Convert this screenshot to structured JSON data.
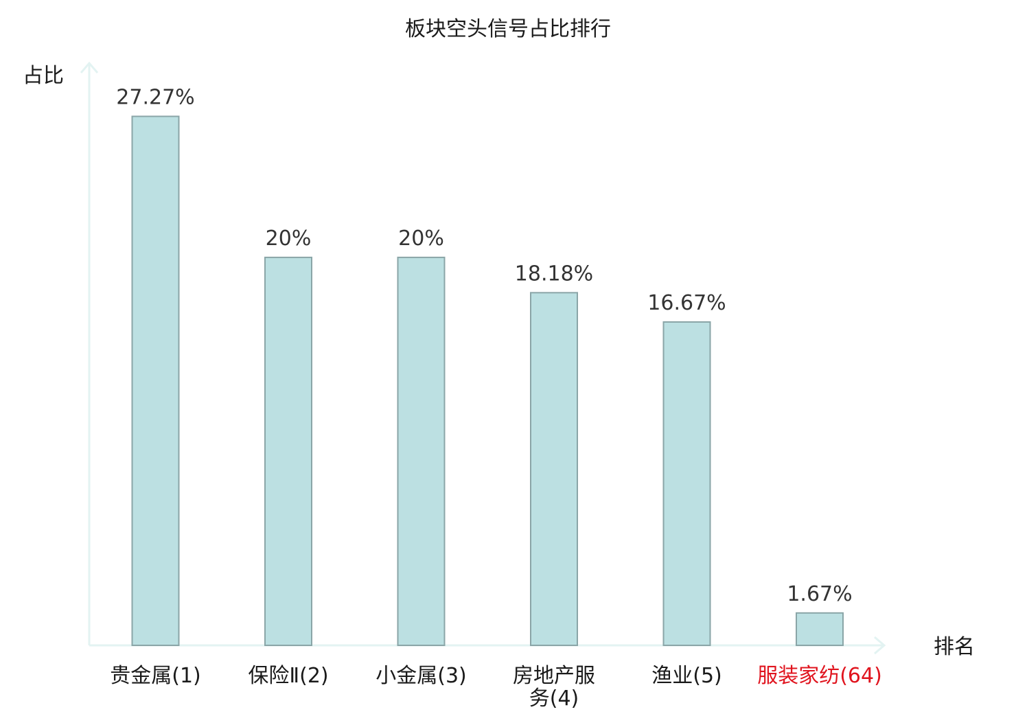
{
  "chart_data": {
    "type": "bar",
    "title": "板块空头信号占比排行",
    "ylabel": "占比",
    "xlabel": "排名",
    "ylim": [
      0,
      30
    ],
    "grid": false,
    "legend": "none",
    "bar_color": "#bce0e2",
    "bar_edge_color": "#8aa5a7",
    "axis_color": "#e3f3f2",
    "highlight_color": "#e0141e",
    "categories": [
      {
        "name": "贵金属",
        "rank": "(1)",
        "highlight": false
      },
      {
        "name": "保险Ⅱ",
        "rank": "(2)",
        "highlight": false
      },
      {
        "name": "小金属",
        "rank": "(3)",
        "highlight": false
      },
      {
        "name": "房地产服务",
        "rank": "(4)",
        "highlight": false,
        "wrap": [
          "房地产服",
          "务(4)"
        ]
      },
      {
        "name": "渔业",
        "rank": "(5)",
        "highlight": false
      },
      {
        "name": "服装家纺",
        "rank": "(64)",
        "highlight": true
      }
    ],
    "values": [
      27.27,
      20,
      20,
      18.18,
      16.67,
      1.67
    ],
    "value_labels": [
      "27.27%",
      "20%",
      "20%",
      "18.18%",
      "16.67%",
      "1.67%"
    ]
  }
}
